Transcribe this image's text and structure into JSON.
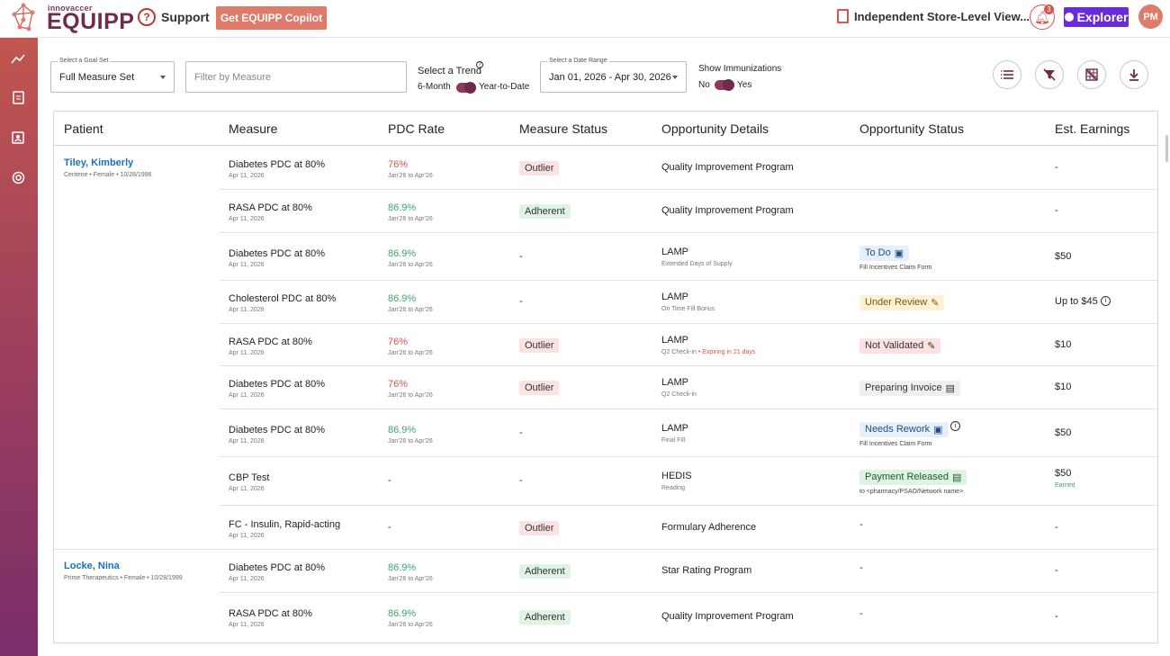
{
  "header": {
    "logo_small": "innovaccer",
    "logo_big": "EQUIPP",
    "support_label": "Support",
    "copilot_label": "Get EQUIPP Copilot",
    "store_view_label": "Independent Store-Level View...",
    "notification_count": "3",
    "explorer_label": "Explorer",
    "avatar_initials": "PM"
  },
  "filters": {
    "goal_set_label": "Select a Goal Set",
    "goal_set_value": "Full Measure Set",
    "measure_placeholder": "Filter by Measure",
    "trend_label": "Select a Trend",
    "trend_left": "6-Month",
    "trend_right": "Year-to-Date",
    "date_label": "Select a Date Range",
    "date_value": "Jan 01, 2026 - Apr 30, 2026",
    "immun_label": "Show Immunizations",
    "immun_no": "No",
    "immun_yes": "Yes"
  },
  "table": {
    "headers": [
      "Patient",
      "Measure",
      "PDC Rate",
      "Measure Status",
      "Opportunity Details",
      "Opportunity Status",
      "Est. Earnings"
    ],
    "patients": [
      {
        "name": "Tiley, Kimberly",
        "sub": "Centene • Female • 10/28/1996"
      },
      {
        "name": "Locke, Nina",
        "sub": "Prime Therapeutics • Female • 10/28/1999"
      }
    ],
    "rows": [
      {
        "measure": "Diabetes PDC at 80%",
        "date": "Apr 11, 2026",
        "pdc": "76%",
        "pdc_range": "Jan'26 to Apr'26",
        "mstatus": "Outlier",
        "opp": "Quality Improvement Program",
        "opp_sub": "",
        "ostatus": "",
        "ostatus_sub": "",
        "earn": "-",
        "earn_sub": ""
      },
      {
        "measure": "RASA PDC at 80%",
        "date": "Apr 11, 2026",
        "pdc": "86.9%",
        "pdc_range": "Jan'26 to Apr'26",
        "mstatus": "Adherent",
        "opp": "Quality Improvement Program",
        "opp_sub": "",
        "ostatus": "",
        "ostatus_sub": "",
        "earn": "-",
        "earn_sub": ""
      },
      {
        "measure": "Diabetes PDC at 80%",
        "date": "Apr 11, 2026",
        "pdc": "86.9%",
        "pdc_range": "Jan'26 to Apr'26",
        "mstatus": "-",
        "opp": "LAMP",
        "opp_sub": "Extended Days of Supply",
        "ostatus": "To Do",
        "ostatus_sub": "Fill Incentives Claim Form",
        "earn": "$50",
        "earn_sub": ""
      },
      {
        "measure": "Cholesterol PDC at 80%",
        "date": "Apr 11, 2026",
        "pdc": "86.9%",
        "pdc_range": "Jan'26 to Apr'26",
        "mstatus": "-",
        "opp": "LAMP",
        "opp_sub": "On Time Fill Bonus",
        "ostatus": "Under Review",
        "ostatus_sub": "",
        "earn": "Up to $45",
        "earn_sub": ""
      },
      {
        "measure": "RASA PDC at 80%",
        "date": "Apr 11, 2026",
        "pdc": "76%",
        "pdc_range": "Jan'26 to Apr'26",
        "mstatus": "Outlier",
        "opp": "LAMP",
        "opp_sub": "Q2 Check-in",
        "opp_expiry": "• Expiring in 21 days",
        "ostatus": "Not Validated",
        "ostatus_sub": "",
        "earn": "$10",
        "earn_sub": ""
      },
      {
        "measure": "Diabetes PDC at 80%",
        "date": "Apr 11, 2026",
        "pdc": "76%",
        "pdc_range": "Jan'26 to Apr'26",
        "mstatus": "Outlier",
        "opp": "LAMP",
        "opp_sub": "Q2 Check-in",
        "ostatus": "Preparing Invoice",
        "ostatus_sub": "",
        "earn": "$10",
        "earn_sub": ""
      },
      {
        "measure": "Diabetes PDC at 80%",
        "date": "Apr 11, 2026",
        "pdc": "86.9%",
        "pdc_range": "Jan'26 to Apr'26",
        "mstatus": "-",
        "opp": "LAMP",
        "opp_sub": "Final Fill",
        "ostatus": "Needs Rework",
        "ostatus_sub": "Fill Incentives Claim Form",
        "earn": "$50",
        "earn_sub": ""
      },
      {
        "measure": "CBP Test",
        "date": "Apr 11, 2026",
        "pdc": "-",
        "pdc_range": "",
        "mstatus": "-",
        "opp": "HEDIS",
        "opp_sub": "Reading",
        "ostatus": "Payment Released",
        "ostatus_sub": "to <pharmacy/PSAO/Network name>",
        "earn": "$50",
        "earn_sub": "Earned"
      },
      {
        "measure": "FC - Insulin, Rapid-acting",
        "date": "Apr 11, 2026",
        "pdc": "-",
        "pdc_range": "",
        "mstatus": "Outlier",
        "opp": "Formulary Adherence",
        "opp_sub": "",
        "ostatus": "-",
        "ostatus_sub": "",
        "earn": "-",
        "earn_sub": ""
      },
      {
        "measure": "Diabetes PDC at 80%",
        "date": "Apr 11, 2026",
        "pdc": "86.9%",
        "pdc_range": "Jan'26 to Apr'26",
        "mstatus": "Adherent",
        "opp": "Star Rating Program",
        "opp_sub": "",
        "ostatus": "-",
        "ostatus_sub": "",
        "earn": "-",
        "earn_sub": ""
      },
      {
        "measure": "RASA PDC at 80%",
        "date": "Apr 11, 2026",
        "pdc": "86.9%",
        "pdc_range": "Jan'26 to Apr'26",
        "mstatus": "Adherent",
        "opp": "Quality Improvement Program",
        "opp_sub": "",
        "ostatus": "-",
        "ostatus_sub": "",
        "earn": "-",
        "earn_sub": ""
      }
    ]
  },
  "colors": {
    "brand": "#6e2c4c",
    "accent": "#e07a6b",
    "explorer": "#6a2bd9",
    "red": "#d9534f",
    "green": "#3aa76d",
    "link": "#1a6fc4"
  }
}
